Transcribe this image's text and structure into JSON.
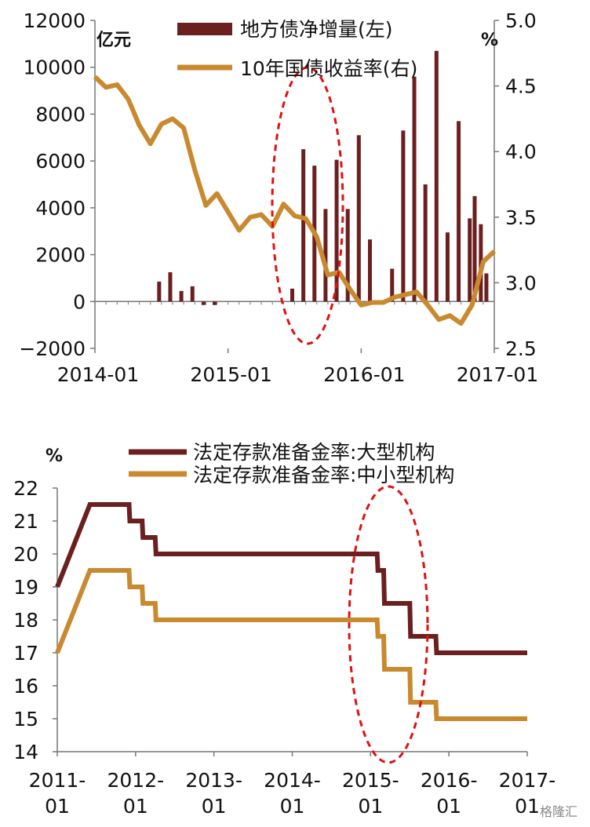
{
  "watermark": "格隆汇",
  "colors": {
    "bar": "#6b1f1f",
    "line_gold": "#c8892f",
    "line_dark": "#6b1f1f",
    "highlight": "#e01010",
    "axis": "#777777"
  },
  "chart_data": [
    {
      "type": "bar+line",
      "left_unit": "亿元",
      "right_unit": "%",
      "x_ticks": [
        "2014-01",
        "2015-01",
        "2016-01",
        "2017-01"
      ],
      "x_range": [
        0,
        36
      ],
      "y_left_ticks": [
        "12000",
        "10000",
        "8000",
        "6000",
        "4000",
        "2000",
        "0",
        "−2000"
      ],
      "y_left_range": [
        -2000,
        12000
      ],
      "y_right_ticks": [
        "5.0",
        "4.5",
        "4.0",
        "3.5",
        "3.0",
        "2.5"
      ],
      "y_right_range": [
        2.5,
        5.0
      ],
      "series": [
        {
          "name": "地方债净增量(左)",
          "kind": "bar",
          "x": [
            1,
            2,
            3,
            4,
            5,
            6,
            7,
            8,
            9,
            10,
            11,
            12,
            13,
            14,
            15,
            16,
            17,
            18,
            19,
            20,
            21,
            22,
            23,
            24,
            25,
            26,
            27,
            28,
            29,
            30,
            31,
            32,
            33,
            34,
            35
          ],
          "values": [
            0,
            0,
            0,
            0,
            0,
            850,
            1250,
            450,
            650,
            -150,
            -150,
            0,
            0,
            0,
            0,
            0,
            0,
            550,
            6500,
            5800,
            3950,
            6050,
            3950,
            7100,
            2650,
            0,
            1400,
            7300,
            9600,
            5000,
            10700,
            2950,
            7700,
            3550,
            3300
          ]
        },
        {
          "name": "地方债净增量(左)",
          "kind": "bar-tail",
          "x": [
            36
          ],
          "values": [
            4500
          ]
        },
        {
          "name": "10年国债收益率(右)",
          "kind": "line",
          "x": [
            0,
            1,
            2,
            3,
            4,
            5,
            6,
            7,
            8,
            9,
            10,
            11,
            12,
            13,
            14,
            15,
            16,
            17,
            18,
            19,
            20,
            21,
            22,
            23,
            24,
            25,
            26,
            27,
            28,
            29,
            30,
            31,
            32,
            33,
            34,
            35,
            36
          ],
          "values": [
            4.57,
            4.49,
            4.51,
            4.4,
            4.2,
            4.06,
            4.21,
            4.25,
            4.18,
            3.86,
            3.59,
            3.68,
            3.54,
            3.4,
            3.5,
            3.52,
            3.43,
            3.6,
            3.51,
            3.49,
            3.35,
            3.06,
            3.08,
            2.95,
            2.83,
            2.85,
            2.85,
            2.89,
            2.91,
            2.93,
            2.83,
            2.72,
            2.75,
            2.69,
            2.83,
            3.16,
            3.24
          ]
        }
      ],
      "bar_extra": {
        "x": 35.5,
        "value": 1200
      }
    },
    {
      "type": "line",
      "y_unit": "%",
      "x_ticks": [
        [
          "2011-",
          "01"
        ],
        [
          "2012-",
          "01"
        ],
        [
          "2013-",
          "01"
        ],
        [
          "2014-",
          "01"
        ],
        [
          "2015-",
          "01"
        ],
        [
          "2016-",
          "01"
        ],
        [
          "2017-",
          "01"
        ]
      ],
      "x_range": [
        0,
        72
      ],
      "y_ticks": [
        "22",
        "21",
        "20",
        "19",
        "18",
        "17",
        "16",
        "15",
        "14"
      ],
      "y_range": [
        14,
        22
      ],
      "series": [
        {
          "name": "法定存款准备金率:大型机构",
          "x": [
            0,
            5,
            10,
            10,
            11,
            11,
            13,
            13,
            15,
            15,
            72
          ],
          "steps": [
            [
              0,
              19
            ],
            [
              5,
              21.5
            ],
            [
              10,
              21.5
            ],
            [
              11,
              21
            ],
            [
              13,
              20.5
            ],
            [
              15,
              20
            ],
            [
              48,
              20
            ],
            [
              49,
              19.5
            ],
            [
              50,
              18.5
            ],
            [
              54,
              17.5
            ],
            [
              58,
              17
            ],
            [
              72,
              17
            ]
          ]
        },
        {
          "name": "法定存款准备金率:中小型机构",
          "steps": [
            [
              0,
              17
            ],
            [
              5,
              19.5
            ],
            [
              10,
              19.5
            ],
            [
              11,
              19
            ],
            [
              13,
              18.5
            ],
            [
              15,
              18
            ],
            [
              48,
              18
            ],
            [
              49,
              17.5
            ],
            [
              50,
              16.5
            ],
            [
              54,
              15.5
            ],
            [
              58,
              15
            ],
            [
              72,
              15
            ]
          ]
        }
      ]
    }
  ]
}
